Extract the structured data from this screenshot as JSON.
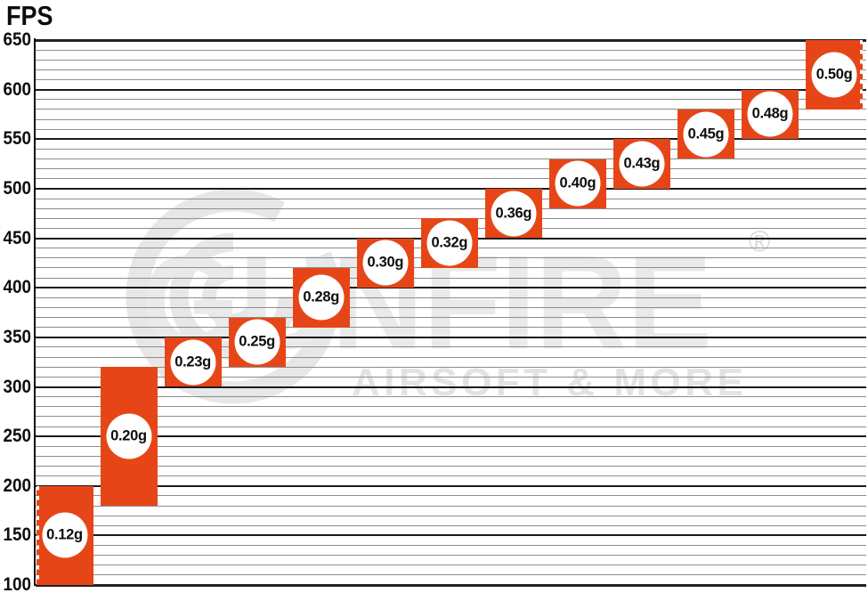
{
  "title": "FPS",
  "colors": {
    "bar": "#e64617",
    "bar_circle": "#ffffff",
    "major_gridline": "#1b1b1b",
    "minor_gridline": "#8d8d8d",
    "text": "#0d0d0d",
    "watermark": "#eaeaea",
    "background": "#ffffff"
  },
  "y_axis": {
    "label": "FPS",
    "min": 100,
    "max": 650,
    "major_step": 50,
    "minor_step": 10,
    "tick_labels": [
      "650",
      "600",
      "550",
      "500",
      "450",
      "400",
      "350",
      "300",
      "250",
      "200",
      "150",
      "100"
    ]
  },
  "watermark": {
    "brand": "GUNFIRE",
    "tagline": "AIRSOFT & MORE",
    "registered_mark": "®"
  },
  "chart_data": {
    "type": "bar",
    "subtype": "floating-range-bars",
    "title": "FPS",
    "ylabel": "FPS",
    "ylim": [
      100,
      650
    ],
    "grid": "horizontal minor lines every 10 FPS, bold major lines every 50 FPS",
    "legend": "none",
    "categories": [
      "0.12g",
      "0.20g",
      "0.23g",
      "0.25g",
      "0.28g",
      "0.30g",
      "0.32g",
      "0.36g",
      "0.40g",
      "0.43g",
      "0.45g",
      "0.48g",
      "0.50g"
    ],
    "bars": [
      {
        "label": "0.12g",
        "fps_min": 100,
        "fps_max": 200,
        "dashed_edge": "left"
      },
      {
        "label": "0.20g",
        "fps_min": 180,
        "fps_max": 320
      },
      {
        "label": "0.23g",
        "fps_min": 300,
        "fps_max": 350
      },
      {
        "label": "0.25g",
        "fps_min": 320,
        "fps_max": 370
      },
      {
        "label": "0.28g",
        "fps_min": 360,
        "fps_max": 420
      },
      {
        "label": "0.30g",
        "fps_min": 400,
        "fps_max": 450
      },
      {
        "label": "0.32g",
        "fps_min": 420,
        "fps_max": 470
      },
      {
        "label": "0.36g",
        "fps_min": 450,
        "fps_max": 500
      },
      {
        "label": "0.40g",
        "fps_min": 480,
        "fps_max": 530
      },
      {
        "label": "0.43g",
        "fps_min": 500,
        "fps_max": 550
      },
      {
        "label": "0.45g",
        "fps_min": 530,
        "fps_max": 580
      },
      {
        "label": "0.48g",
        "fps_min": 550,
        "fps_max": 600
      },
      {
        "label": "0.50g",
        "fps_min": 580,
        "fps_max": 650,
        "dashed_edge": "right"
      }
    ]
  }
}
